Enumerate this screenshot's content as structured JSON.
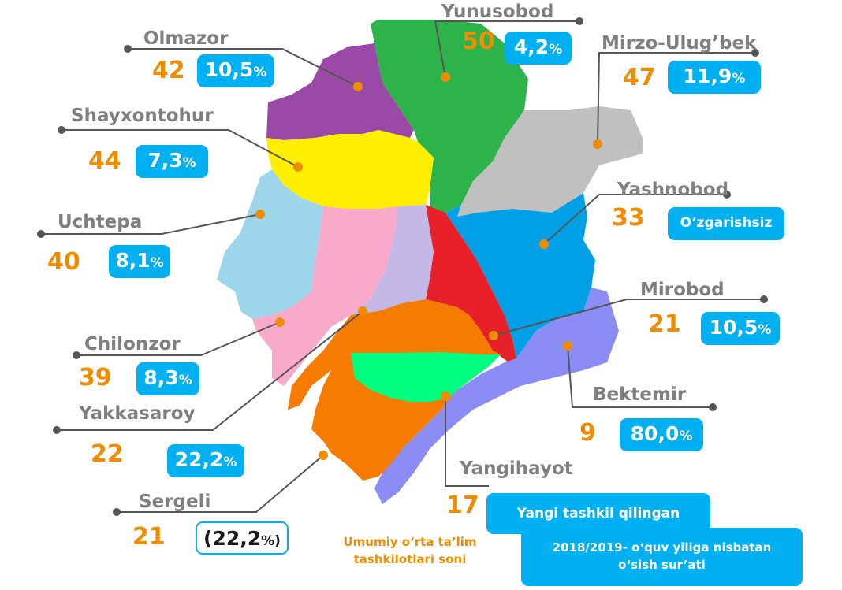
{
  "districts": [
    {
      "name": "Yunusobod",
      "count": "50",
      "change": "4,2",
      "unit": "%",
      "color": "#2db34a"
    },
    {
      "name": "Olmazor",
      "count": "42",
      "change": "10,5",
      "unit": "%",
      "color": "#9b49a6"
    },
    {
      "name": "Mirzo-Ulug’bek",
      "count": "47",
      "change": "11,9",
      "unit": "%",
      "color": "#c0c0c0"
    },
    {
      "name": "Shayxontohur",
      "count": "44",
      "change": "7,3",
      "unit": "%",
      "color": "#ffee00"
    },
    {
      "name": "Yashnobod",
      "count": "33",
      "change": "O‘zgarishsiz",
      "unit": "",
      "color": "#00a0e6"
    },
    {
      "name": "Uchtepa",
      "count": "40",
      "change": "8,1",
      "unit": "%",
      "color": "#9dd6ea"
    },
    {
      "name": "Mirobod",
      "count": "21",
      "change": "10,5",
      "unit": "%",
      "color": "#e8202a"
    },
    {
      "name": "Chilonzor",
      "count": "39",
      "change": "8,3",
      "unit": "%",
      "color": "#f9a9c9"
    },
    {
      "name": "Bektemir",
      "count": "9",
      "change": "80,0",
      "unit": "%",
      "color": "#8c8cf5"
    },
    {
      "name": "Yakkasaroy",
      "count": "22",
      "change": "22,2",
      "unit": "%",
      "color": "#c4b9e6"
    },
    {
      "name": "Yangihayot",
      "count": "17",
      "change": "",
      "unit": "",
      "color": "#00ff80"
    },
    {
      "name": "Sergeli",
      "count": "21",
      "change": "(22,2",
      "unit": "%)",
      "color": "#f57c00"
    }
  ],
  "legend": {
    "new_label": "Yangi tashkil qilingan",
    "growth_label": "2018/2019- o‘quv yiliga nisbatan o‘sish sur’ati",
    "count_label": "Umumiy o‘rta ta’lim tashkilotlari soni"
  },
  "colors": {
    "label_gray": "#7f7f7f",
    "count_orange": "#f08c00",
    "badge_blue": "#00b0f0",
    "point_orange": "#f08c00"
  }
}
